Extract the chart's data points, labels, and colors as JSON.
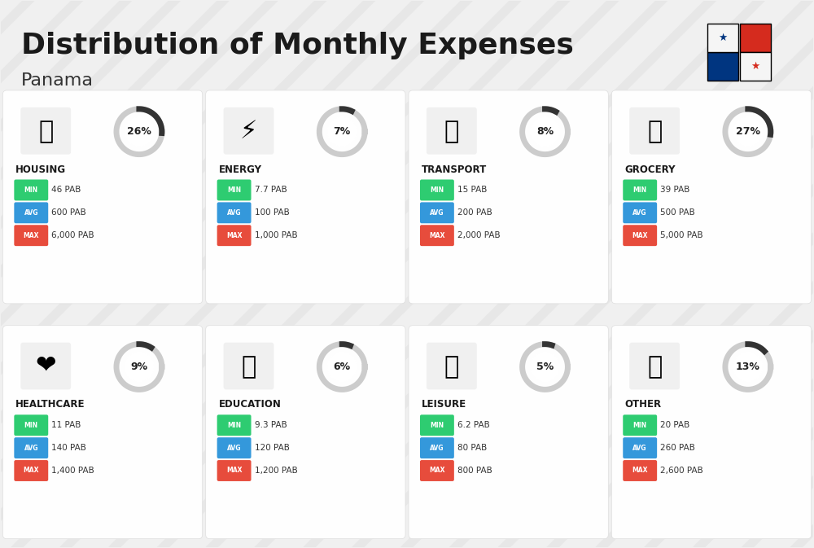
{
  "title": "Distribution of Monthly Expenses",
  "subtitle": "Panama",
  "background_color": "#f0f0f0",
  "categories": [
    {
      "name": "HOUSING",
      "percent": 26,
      "min": "46 PAB",
      "avg": "600 PAB",
      "max": "6,000 PAB",
      "row": 0,
      "col": 0,
      "emoji": "🏗"
    },
    {
      "name": "ENERGY",
      "percent": 7,
      "min": "7.7 PAB",
      "avg": "100 PAB",
      "max": "1,000 PAB",
      "row": 0,
      "col": 1,
      "emoji": "⚡"
    },
    {
      "name": "TRANSPORT",
      "percent": 8,
      "min": "15 PAB",
      "avg": "200 PAB",
      "max": "2,000 PAB",
      "row": 0,
      "col": 2,
      "emoji": "🚌"
    },
    {
      "name": "GROCERY",
      "percent": 27,
      "min": "39 PAB",
      "avg": "500 PAB",
      "max": "5,000 PAB",
      "row": 0,
      "col": 3,
      "emoji": "🛒"
    },
    {
      "name": "HEALTHCARE",
      "percent": 9,
      "min": "11 PAB",
      "avg": "140 PAB",
      "max": "1,400 PAB",
      "row": 1,
      "col": 0,
      "emoji": "❤"
    },
    {
      "name": "EDUCATION",
      "percent": 6,
      "min": "9.3 PAB",
      "avg": "120 PAB",
      "max": "1,200 PAB",
      "row": 1,
      "col": 1,
      "emoji": "🎓"
    },
    {
      "name": "LEISURE",
      "percent": 5,
      "min": "6.2 PAB",
      "avg": "80 PAB",
      "max": "800 PAB",
      "row": 1,
      "col": 2,
      "emoji": "🛍"
    },
    {
      "name": "OTHER",
      "percent": 13,
      "min": "20 PAB",
      "avg": "260 PAB",
      "max": "2,600 PAB",
      "row": 1,
      "col": 3,
      "emoji": "💰"
    }
  ],
  "min_color": "#2ecc71",
  "avg_color": "#3498db",
  "max_color": "#e74c3c",
  "label_color": "#ffffff",
  "arc_color": "#333333",
  "arc_bg_color": "#cccccc"
}
